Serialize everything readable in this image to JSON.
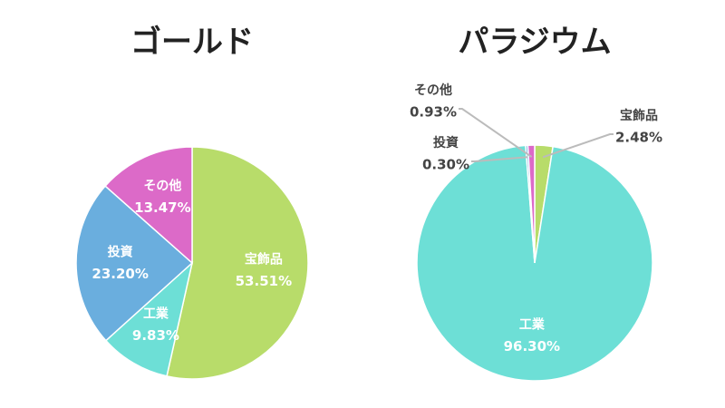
{
  "chart_data": [
    {
      "type": "pie",
      "title": "ゴールド",
      "categories": [
        "宝飾品",
        "工業",
        "投資",
        "その他"
      ],
      "values": [
        53.51,
        9.83,
        23.2,
        13.47
      ],
      "value_labels": [
        "53.51%",
        "9.83%",
        "23.20%",
        "13.47%"
      ],
      "colors": [
        "#b8dc6a",
        "#6ddfd6",
        "#6aaede",
        "#dc6ac8"
      ]
    },
    {
      "type": "pie",
      "title": "パラジウム",
      "categories": [
        "宝飾品",
        "工業",
        "投資",
        "その他"
      ],
      "values": [
        2.48,
        96.3,
        0.3,
        0.93
      ],
      "value_labels": [
        "2.48%",
        "96.30%",
        "0.30%",
        "0.93%"
      ],
      "colors": [
        "#b8dc6a",
        "#6ddfd6",
        "#6aaede",
        "#dc6ac8"
      ]
    }
  ]
}
